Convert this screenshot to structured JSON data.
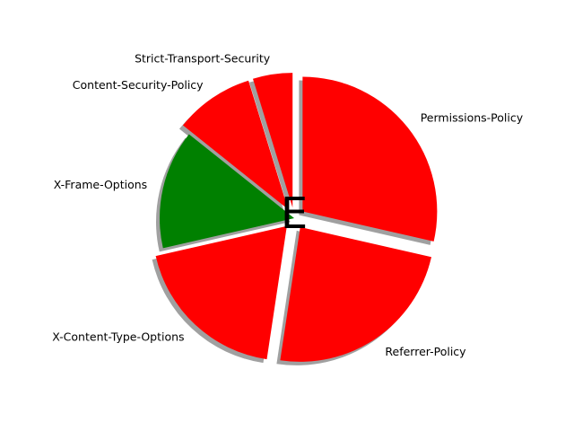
{
  "chart_data": {
    "type": "pie",
    "title": "",
    "grade": "E",
    "shadow": true,
    "start_angle_deg": 90,
    "direction": "clockwise",
    "slices": [
      {
        "label": "Permissions-Policy",
        "value": 30,
        "color": "#ff0000",
        "exploded": true
      },
      {
        "label": "Referrer-Policy",
        "value": 25,
        "color": "#ff0000",
        "exploded": true
      },
      {
        "label": "X-Content-Type-Options",
        "value": 20,
        "color": "#ff0000",
        "exploded": true
      },
      {
        "label": "X-Frame-Options",
        "value": 15,
        "color": "#008000",
        "exploded": false
      },
      {
        "label": "Content-Security-Policy",
        "value": 10,
        "color": "#ff0000",
        "exploded": true
      },
      {
        "label": "Strict-Transport-Security",
        "value": 5,
        "color": "#ff0000",
        "exploded": true
      }
    ]
  }
}
